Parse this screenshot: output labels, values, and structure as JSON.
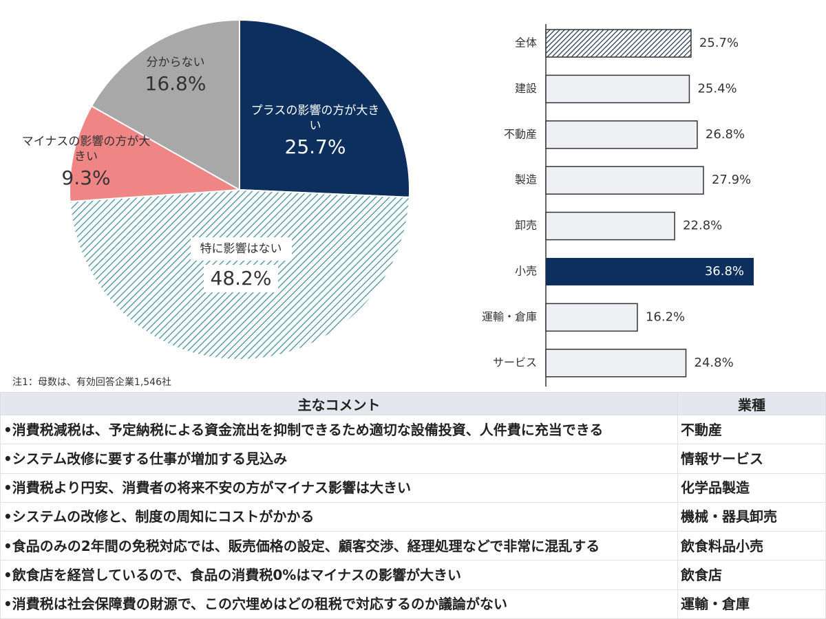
{
  "chart_data": [
    {
      "type": "pie",
      "categories": [
        "プラスの影響の方が大きい",
        "特に影響はない",
        "マイナスの影響の方が大きい",
        "分からない"
      ],
      "values": [
        25.7,
        48.2,
        9.3,
        16.8
      ],
      "value_labels": [
        "25.7%",
        "48.2%",
        "9.3%",
        "16.8%"
      ],
      "colors": [
        "#0c2f5e",
        "#5b9ea8",
        "#f08585",
        "#a8a8a8"
      ],
      "hatched": [
        false,
        true,
        false,
        false
      ],
      "note": "注1：母数は、有効回答企業1,546社"
    },
    {
      "type": "bar",
      "orientation": "horizontal",
      "categories": [
        "全体",
        "建設",
        "不動産",
        "製造",
        "卸売",
        "小売",
        "運輸・倉庫",
        "サービス"
      ],
      "values": [
        25.7,
        25.4,
        26.8,
        27.9,
        22.8,
        36.8,
        16.2,
        24.8
      ],
      "value_labels": [
        "25.7%",
        "25.4%",
        "26.8%",
        "27.9%",
        "22.8%",
        "36.8%",
        "16.2%",
        "24.8%"
      ],
      "colors": [
        "#1e3550",
        "#eef0f3",
        "#eef0f3",
        "#eef0f3",
        "#eef0f3",
        "#0c2f5e",
        "#eef0f3",
        "#eef0f3"
      ],
      "hatched": [
        true,
        false,
        false,
        false,
        false,
        false,
        false,
        false
      ]
    }
  ],
  "table": {
    "header": [
      "主なコメント",
      "業種"
    ],
    "rows": [
      [
        "•消費税減税は、予定納税による資金流出を抑制できるため適切な設備投資、人件費に充当できる",
        "不動産"
      ],
      [
        "•システム改修に要する仕事が増加する見込み",
        "情報サービス"
      ],
      [
        "•消費税より円安、消費者の将来不安の方がマイナス影響は大きい",
        "化学品製造"
      ],
      [
        "•システムの改修と、制度の周知にコストがかかる",
        "機械・器具卸売"
      ],
      [
        "•食品のみの2年間の免税対応では、販売価格の設定、顧客交渉、経理処理などで非常に混乱する",
        "飲食料品小売"
      ],
      [
        "•飲食店を経営しているので、食品の消費税0%はマイナスの影響が大きい",
        "飲食店"
      ],
      [
        "•消費税は社会保障費の財源で、この穴埋めはどの租税で対応するのか議論がない",
        "運輸・倉庫"
      ]
    ]
  }
}
